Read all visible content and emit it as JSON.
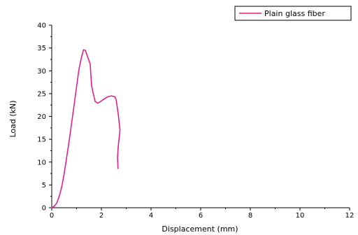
{
  "chart_data": {
    "type": "line",
    "title": "",
    "xlabel": "Displacement (mm)",
    "ylabel": "Load (kN)",
    "xlim": [
      0,
      12
    ],
    "ylim": [
      0,
      40
    ],
    "x_ticks": [
      "0",
      "2",
      "4",
      "6",
      "8",
      "10",
      "12"
    ],
    "y_ticks": [
      "0",
      "5",
      "10",
      "15",
      "20",
      "25",
      "30",
      "35",
      "40"
    ],
    "grid": false,
    "legend_position": "top-right",
    "series": [
      {
        "name": "Plain glass fiber",
        "color": "#e0218a",
        "points": [
          [
            0.0,
            0.0
          ],
          [
            0.1,
            0.3
          ],
          [
            0.2,
            1.0
          ],
          [
            0.3,
            2.5
          ],
          [
            0.4,
            4.5
          ],
          [
            0.5,
            7.5
          ],
          [
            0.6,
            11.0
          ],
          [
            0.7,
            14.5
          ],
          [
            0.8,
            18.5
          ],
          [
            0.9,
            22.5
          ],
          [
            1.0,
            26.5
          ],
          [
            1.1,
            30.5
          ],
          [
            1.2,
            33.0
          ],
          [
            1.28,
            34.6
          ],
          [
            1.35,
            34.5
          ],
          [
            1.45,
            33.0
          ],
          [
            1.55,
            31.5
          ],
          [
            1.6,
            27.0
          ],
          [
            1.65,
            25.5
          ],
          [
            1.75,
            23.3
          ],
          [
            1.85,
            22.9
          ],
          [
            1.95,
            23.2
          ],
          [
            2.1,
            23.8
          ],
          [
            2.25,
            24.3
          ],
          [
            2.4,
            24.5
          ],
          [
            2.55,
            24.3
          ],
          [
            2.6,
            23.5
          ],
          [
            2.68,
            20.5
          ],
          [
            2.75,
            17.0
          ],
          [
            2.72,
            15.5
          ],
          [
            2.68,
            13.5
          ],
          [
            2.65,
            11.0
          ],
          [
            2.67,
            8.6
          ]
        ]
      }
    ]
  }
}
